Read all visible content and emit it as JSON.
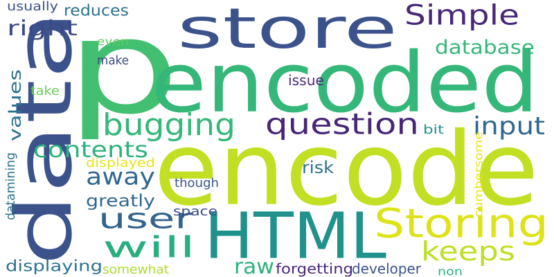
{
  "words": [
    {
      "text": "p",
      "color": "#43bf71",
      "rotated": false
    },
    {
      "text": "encode",
      "color": "#c2df23",
      "rotated": false
    },
    {
      "text": "encoded",
      "color": "#35b779",
      "rotated": false
    },
    {
      "text": "data",
      "color": "#3b528b",
      "rotated": true
    },
    {
      "text": "store",
      "color": "#3b528b",
      "rotated": false
    },
    {
      "text": "HTML",
      "color": "#21918c",
      "rotated": false
    },
    {
      "text": "Storing",
      "color": "#dde318",
      "rotated": false
    },
    {
      "text": "question",
      "color": "#482677",
      "rotated": false
    },
    {
      "text": "bugging",
      "color": "#35b779",
      "rotated": false
    },
    {
      "text": "Simple",
      "color": "#482878",
      "rotated": false
    },
    {
      "text": "will",
      "color": "#29af7f",
      "rotated": false
    },
    {
      "text": "user",
      "color": "#33638d",
      "rotated": false
    },
    {
      "text": "input",
      "color": "#31688e",
      "rotated": false
    },
    {
      "text": "keeps",
      "color": "#bddf26",
      "rotated": false
    },
    {
      "text": "contents",
      "color": "#2db27d",
      "rotated": false
    },
    {
      "text": "away",
      "color": "#31688e",
      "rotated": false
    },
    {
      "text": "right",
      "color": "#3e4989",
      "rotated": false
    },
    {
      "text": "database",
      "color": "#35b779",
      "rotated": false
    },
    {
      "text": "values",
      "color": "#2c728e",
      "rotated": true
    },
    {
      "text": "raw",
      "color": "#2db27d",
      "rotated": false
    },
    {
      "text": "greatly",
      "color": "#31688e",
      "rotated": false
    },
    {
      "text": "reduces",
      "color": "#2c728e",
      "rotated": false
    },
    {
      "text": "displaying",
      "color": "#2c728e",
      "rotated": false
    },
    {
      "text": "risk",
      "color": "#2c728e",
      "rotated": false
    },
    {
      "text": "usually",
      "color": "#3b528b",
      "rotated": false
    },
    {
      "text": "even",
      "color": "#5ec962",
      "rotated": false
    },
    {
      "text": "make",
      "color": "#3e4989",
      "rotated": false
    },
    {
      "text": "take",
      "color": "#6ccd5a",
      "rotated": false
    },
    {
      "text": "issue",
      "color": "#482878",
      "rotated": false
    },
    {
      "text": "bit",
      "color": "#21918c",
      "rotated": false
    },
    {
      "text": "displayed",
      "color": "#e5e419",
      "rotated": false
    },
    {
      "text": "though",
      "color": "#39568c",
      "rotated": false
    },
    {
      "text": "space",
      "color": "#3e4989",
      "rotated": false
    },
    {
      "text": "datamining",
      "color": "#2c728e",
      "rotated": true
    },
    {
      "text": "cumbersome",
      "color": "#e5e419",
      "rotated": true
    },
    {
      "text": "somewhat",
      "color": "#addc30",
      "rotated": false
    },
    {
      "text": "forgetting",
      "color": "#482878",
      "rotated": false
    },
    {
      "text": "developer",
      "color": "#3b528b",
      "rotated": false
    },
    {
      "text": "non",
      "color": "#29af7f",
      "rotated": false
    }
  ]
}
